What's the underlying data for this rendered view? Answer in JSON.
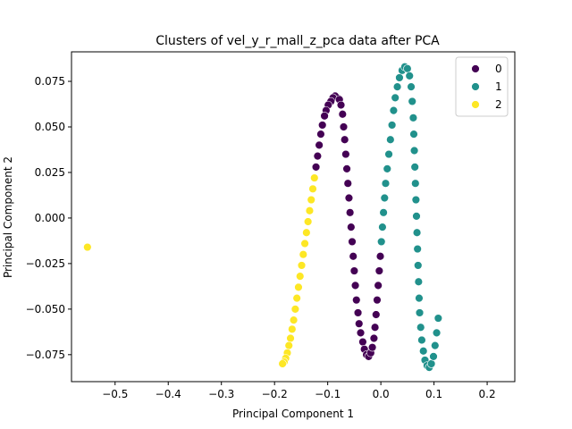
{
  "chart_data": {
    "type": "scatter",
    "title": "Clusters of vel_y_r_mall_z_pca data after PCA",
    "xlabel": "Principal Component 1",
    "ylabel": "Principal Component 2",
    "xlim": [
      -0.582,
      0.252
    ],
    "ylim": [
      -0.0898,
      0.0912
    ],
    "xticks": [
      -0.5,
      -0.4,
      -0.3,
      -0.2,
      -0.1,
      0.0,
      0.1,
      0.2
    ],
    "xtick_labels": [
      "−0.5",
      "−0.4",
      "−0.3",
      "−0.2",
      "−0.1",
      "0.0",
      "0.1",
      "0.2"
    ],
    "yticks": [
      -0.075,
      -0.05,
      -0.025,
      0.0,
      0.025,
      0.05,
      0.075
    ],
    "ytick_labels": [
      "−0.075",
      "−0.050",
      "−0.025",
      "0.000",
      "0.025",
      "0.050",
      "0.075"
    ],
    "grid": false,
    "legend": {
      "position": "top-right"
    },
    "series": [
      {
        "name": "0",
        "color": "#440154",
        "points": [
          [
            -0.082,
            0.066
          ],
          [
            -0.086,
            0.067
          ],
          [
            -0.09,
            0.066
          ],
          [
            -0.094,
            0.064
          ],
          [
            -0.099,
            0.062
          ],
          [
            -0.103,
            0.059
          ],
          [
            -0.106,
            0.056
          ],
          [
            -0.11,
            0.051
          ],
          [
            -0.113,
            0.046
          ],
          [
            -0.116,
            0.04
          ],
          [
            -0.119,
            0.034
          ],
          [
            -0.122,
            0.028
          ],
          [
            -0.078,
            0.065
          ],
          [
            -0.075,
            0.062
          ],
          [
            -0.072,
            0.057
          ],
          [
            -0.07,
            0.05
          ],
          [
            -0.068,
            0.043
          ],
          [
            -0.066,
            0.035
          ],
          [
            -0.064,
            0.027
          ],
          [
            -0.062,
            0.019
          ],
          [
            -0.06,
            0.011
          ],
          [
            -0.058,
            0.003
          ],
          [
            -0.056,
            -0.005
          ],
          [
            -0.054,
            -0.013
          ],
          [
            -0.052,
            -0.021
          ],
          [
            -0.05,
            -0.029
          ],
          [
            -0.048,
            -0.037
          ],
          [
            -0.046,
            -0.045
          ],
          [
            -0.043,
            -0.052
          ],
          [
            -0.041,
            -0.058
          ],
          [
            -0.038,
            -0.063
          ],
          [
            -0.034,
            -0.068
          ],
          [
            -0.031,
            -0.072
          ],
          [
            -0.027,
            -0.075
          ],
          [
            -0.023,
            -0.076
          ],
          [
            -0.019,
            -0.074
          ],
          [
            -0.016,
            -0.071
          ],
          [
            -0.013,
            -0.066
          ],
          [
            -0.011,
            -0.06
          ],
          [
            -0.009,
            -0.053
          ],
          [
            -0.007,
            -0.045
          ],
          [
            -0.005,
            -0.037
          ],
          [
            -0.003,
            -0.029
          ],
          [
            -0.001,
            -0.021
          ]
        ]
      },
      {
        "name": "1",
        "color": "#21918c",
        "points": [
          [
            0.001,
            -0.013
          ],
          [
            0.003,
            -0.005
          ],
          [
            0.005,
            0.003
          ],
          [
            0.007,
            0.011
          ],
          [
            0.009,
            0.019
          ],
          [
            0.012,
            0.027
          ],
          [
            0.015,
            0.035
          ],
          [
            0.018,
            0.043
          ],
          [
            0.021,
            0.051
          ],
          [
            0.024,
            0.059
          ],
          [
            0.027,
            0.066
          ],
          [
            0.031,
            0.072
          ],
          [
            0.035,
            0.077
          ],
          [
            0.04,
            0.081
          ],
          [
            0.045,
            0.083
          ],
          [
            0.05,
            0.082
          ],
          [
            0.054,
            0.078
          ],
          [
            0.057,
            0.072
          ],
          [
            0.059,
            0.064
          ],
          [
            0.061,
            0.055
          ],
          [
            0.062,
            0.046
          ],
          [
            0.063,
            0.037
          ],
          [
            0.064,
            0.028
          ],
          [
            0.065,
            0.019
          ],
          [
            0.066,
            0.01
          ],
          [
            0.067,
            0.001
          ],
          [
            0.068,
            -0.008
          ],
          [
            0.069,
            -0.017
          ],
          [
            0.07,
            -0.026
          ],
          [
            0.071,
            -0.035
          ],
          [
            0.072,
            -0.044
          ],
          [
            0.073,
            -0.052
          ],
          [
            0.075,
            -0.06
          ],
          [
            0.077,
            -0.067
          ],
          [
            0.08,
            -0.073
          ],
          [
            0.083,
            -0.078
          ],
          [
            0.087,
            -0.081
          ],
          [
            0.091,
            -0.082
          ],
          [
            0.095,
            -0.08
          ],
          [
            0.099,
            -0.076
          ],
          [
            0.102,
            -0.07
          ],
          [
            0.105,
            -0.063
          ],
          [
            0.108,
            -0.055
          ]
        ]
      },
      {
        "name": "2",
        "color": "#fde725",
        "points": [
          [
            -0.125,
            0.022
          ],
          [
            -0.128,
            0.016
          ],
          [
            -0.131,
            0.01
          ],
          [
            -0.134,
            0.004
          ],
          [
            -0.137,
            -0.002
          ],
          [
            -0.14,
            -0.008
          ],
          [
            -0.143,
            -0.014
          ],
          [
            -0.146,
            -0.02
          ],
          [
            -0.149,
            -0.026
          ],
          [
            -0.152,
            -0.032
          ],
          [
            -0.155,
            -0.038
          ],
          [
            -0.158,
            -0.044
          ],
          [
            -0.161,
            -0.05
          ],
          [
            -0.164,
            -0.056
          ],
          [
            -0.167,
            -0.061
          ],
          [
            -0.17,
            -0.066
          ],
          [
            -0.173,
            -0.07
          ],
          [
            -0.176,
            -0.074
          ],
          [
            -0.179,
            -0.077
          ],
          [
            -0.182,
            -0.079
          ],
          [
            -0.185,
            -0.08
          ],
          [
            -0.552,
            -0.016
          ]
        ]
      }
    ]
  }
}
